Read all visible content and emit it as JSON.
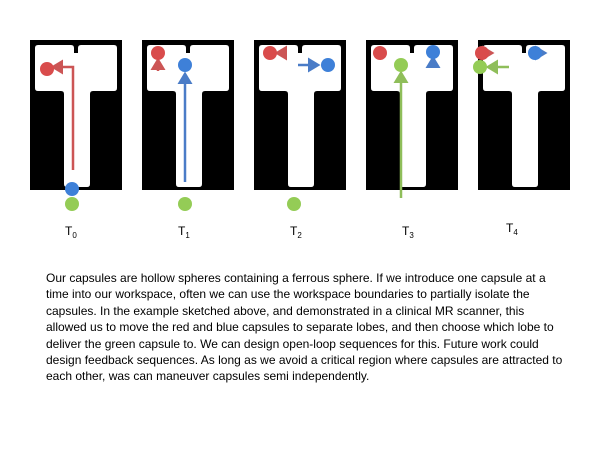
{
  "colors": {
    "background": "#000000",
    "workspace": "#ffffff",
    "red": "#d94c4c",
    "blue": "#3e80d8",
    "green": "#94cc56",
    "red_arrow": "#cc5555",
    "blue_arrow": "#4a7cc7",
    "green_arrow": "#8fbe5a"
  },
  "panels": [
    {
      "label": "T",
      "sub": "0"
    },
    {
      "label": "T",
      "sub": "1"
    },
    {
      "label": "T",
      "sub": "2"
    },
    {
      "label": "T",
      "sub": "3"
    },
    {
      "label": "T",
      "sub": "4"
    }
  ],
  "capsules": [
    "red",
    "blue",
    "green"
  ],
  "description": "Our capsules are hollow spheres containing a ferrous sphere. If we introduce one capsule at a time into our workspace, often we can use the workspace boundaries to partially isolate the capsules. In the example sketched above, and demonstrated in a clinical MR scanner, this allowed us to move the red and blue capsules to separate lobes, and then choose which lobe to deliver the green capsule to.  We can design open-loop sequences for this.  Future work could design feedback sequences.  As long as we avoid a critical region where capsules are attracted to each other, was can maneuver capsules semi independently."
}
